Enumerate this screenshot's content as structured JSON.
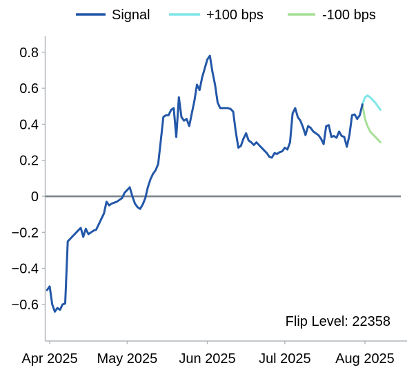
{
  "legend": {
    "items": [
      {
        "label": "Signal",
        "color": "#2357A8"
      },
      {
        "label": "+100 bps",
        "color": "#7FE6E9"
      },
      {
        "label": "-100 bps",
        "color": "#A6E096"
      }
    ]
  },
  "annotation": {
    "flip_level_text": "Flip Level: 22358",
    "flip_level": 22358
  },
  "chart_data": {
    "type": "line",
    "title": "",
    "xlabel": "",
    "ylabel": "",
    "grid": false,
    "legend_position": "top-center",
    "zero_line": 0,
    "x_axis": {
      "ticks": [
        {
          "date": "2025-04-01",
          "label": "Apr 2025"
        },
        {
          "date": "2025-05-01",
          "label": "May 2025"
        },
        {
          "date": "2025-06-01",
          "label": "Jun 2025"
        },
        {
          "date": "2025-07-01",
          "label": "Jul 2025"
        },
        {
          "date": "2025-08-01",
          "label": "Aug 2025"
        }
      ],
      "range_dates": [
        "2025-03-31",
        "2025-08-17"
      ]
    },
    "y_axis": {
      "tick_values": [
        0.8,
        0.6,
        0.4,
        0.2,
        0,
        -0.2,
        -0.4,
        -0.6
      ],
      "tick_labels": [
        "0.8",
        "0.6",
        "0.4",
        "0.2",
        "0",
        "−0.2",
        "−0.4",
        "−0.6"
      ],
      "range": [
        -0.8,
        0.88
      ]
    },
    "series": [
      {
        "name": "Signal",
        "color": "#2357A8",
        "frequency": "daily",
        "start_date": "2025-03-31",
        "values": [
          -0.52,
          -0.5,
          -0.6,
          -0.64,
          -0.62,
          -0.63,
          -0.6,
          -0.595,
          -0.25,
          -0.235,
          -0.22,
          -0.205,
          -0.19,
          -0.175,
          -0.225,
          -0.18,
          -0.21,
          -0.2,
          -0.19,
          -0.185,
          -0.155,
          -0.125,
          -0.095,
          -0.03,
          -0.05,
          -0.04,
          -0.035,
          -0.03,
          -0.02,
          -0.01,
          0.02,
          0.035,
          0.05,
          0.0,
          -0.04,
          -0.06,
          -0.07,
          -0.045,
          -0.01,
          0.05,
          0.095,
          0.125,
          0.145,
          0.18,
          0.31,
          0.44,
          0.45,
          0.45,
          0.48,
          0.49,
          0.33,
          0.55,
          0.44,
          0.42,
          0.43,
          0.39,
          0.46,
          0.53,
          0.62,
          0.59,
          0.66,
          0.71,
          0.76,
          0.78,
          0.69,
          0.62,
          0.52,
          0.49,
          0.49,
          0.49,
          0.49,
          0.485,
          0.47,
          0.36,
          0.27,
          0.28,
          0.32,
          0.35,
          0.31,
          0.3,
          0.285,
          0.3,
          0.285,
          0.27,
          0.255,
          0.24,
          0.22,
          0.215,
          0.24,
          0.235,
          0.245,
          0.25,
          0.27,
          0.26,
          0.3,
          0.46,
          0.49,
          0.44,
          0.42,
          0.385,
          0.34,
          0.39,
          0.38,
          0.36,
          0.35,
          0.34,
          0.32,
          0.29,
          0.39,
          0.395,
          0.33,
          0.335,
          0.325,
          0.36,
          0.335,
          0.33,
          0.275,
          0.34,
          0.45,
          0.455,
          0.43,
          0.45,
          0.51
        ]
      },
      {
        "name": "+100 bps",
        "color": "#7FE6E9",
        "frequency": "daily",
        "start_date": "2025-07-31",
        "values": [
          0.51,
          0.55,
          0.56,
          0.55,
          0.535,
          0.52,
          0.5,
          0.48
        ]
      },
      {
        "name": "-100 bps",
        "color": "#A6E096",
        "frequency": "daily",
        "start_date": "2025-07-31",
        "values": [
          0.51,
          0.43,
          0.39,
          0.36,
          0.345,
          0.33,
          0.315,
          0.3
        ]
      }
    ]
  }
}
